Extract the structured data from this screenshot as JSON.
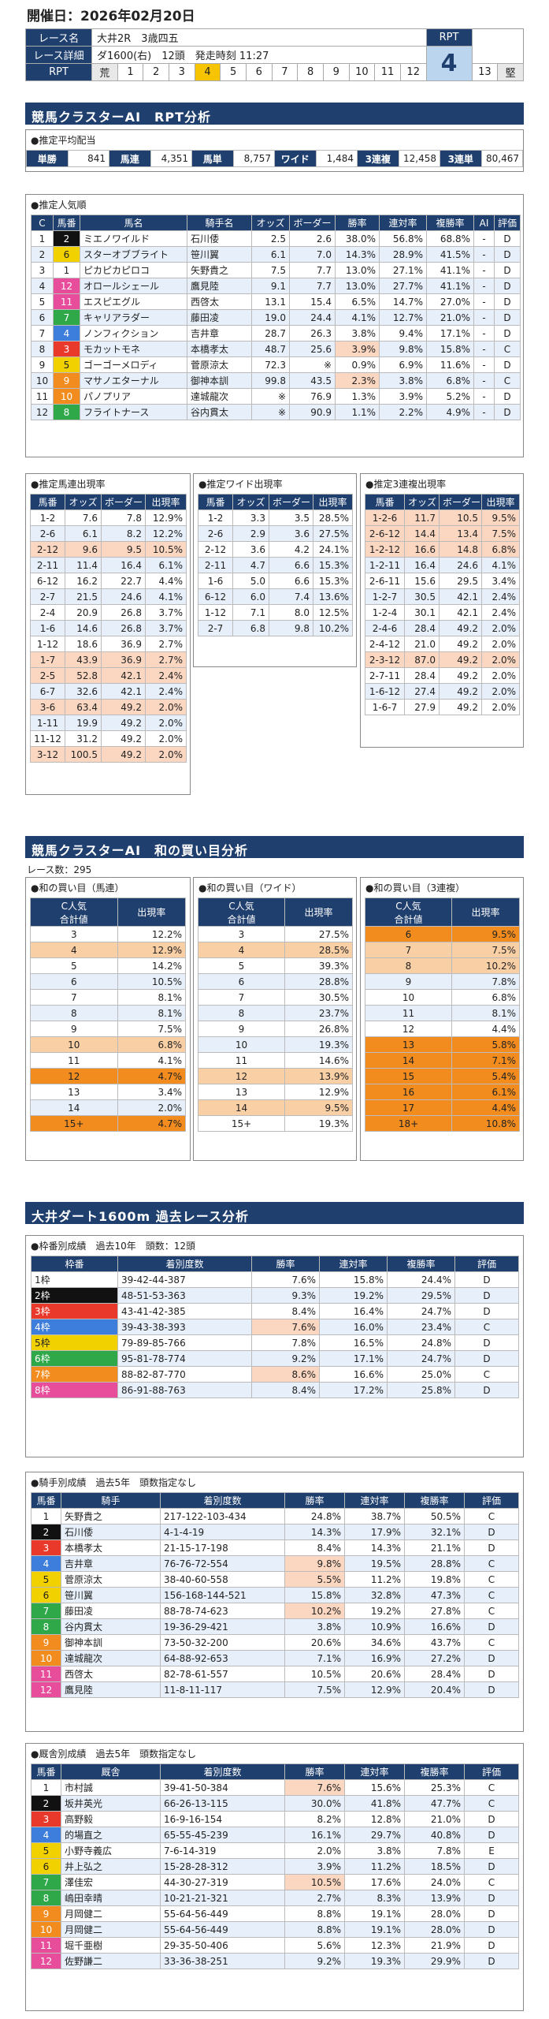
{
  "date": "開催日：2026年02月20日",
  "race": {
    "name_label": "レース名",
    "name": "大井2R　3歳四五",
    "detail_label": "レース詳細",
    "detail": "ダ1600(右)　12頭　発走時刻 11:27",
    "rpt_label": "RPT",
    "rpt_scale_start": "荒",
    "rpt_scale_end": "堅",
    "rpt_scale": [
      "1",
      "2",
      "3",
      "4",
      "5",
      "6",
      "7",
      "8",
      "9",
      "10",
      "11",
      "12",
      "13"
    ],
    "rpt_selected": "4",
    "rpt_value": "4"
  },
  "sec1": "競馬クラスターAI　RPT分析",
  "pay": {
    "title": "●推定平均配当",
    "items": [
      [
        "単勝",
        "841"
      ],
      [
        "馬連",
        "4,351"
      ],
      [
        "馬単",
        "8,757"
      ],
      [
        "ワイド",
        "1,484"
      ],
      [
        "3連複",
        "12,458"
      ],
      [
        "3連単",
        "80,467"
      ]
    ]
  },
  "pop": {
    "title": "●推定人気順",
    "headers": [
      "C",
      "馬番",
      "馬名",
      "騎手名",
      "オッズ",
      "ボーダー",
      "勝率",
      "連対率",
      "複勝率",
      "AI",
      "評価"
    ],
    "rows": [
      [
        "1",
        "2",
        "ミエノワイルド",
        "石川倭",
        "2.5",
        "2.6",
        "38.0%",
        "56.8%",
        "68.8%",
        "-",
        "D"
      ],
      [
        "2",
        "6",
        "スターオブブライト",
        "笹川翼",
        "6.1",
        "7.0",
        "14.3%",
        "28.9%",
        "41.5%",
        "-",
        "D"
      ],
      [
        "3",
        "1",
        "ピカピカピロコ",
        "矢野貴之",
        "7.5",
        "7.7",
        "13.0%",
        "27.1%",
        "41.1%",
        "-",
        "D"
      ],
      [
        "4",
        "12",
        "オロールシェール",
        "鷹見陸",
        "9.1",
        "7.7",
        "13.0%",
        "27.7%",
        "41.1%",
        "-",
        "D"
      ],
      [
        "5",
        "11",
        "エスピエグル",
        "西啓太",
        "13.1",
        "15.4",
        "6.5%",
        "14.7%",
        "27.0%",
        "-",
        "D"
      ],
      [
        "6",
        "7",
        "キャリアラダー",
        "藤田凌",
        "19.0",
        "24.4",
        "4.1%",
        "12.7%",
        "21.0%",
        "-",
        "D"
      ],
      [
        "7",
        "4",
        "ノンフィクション",
        "吉井章",
        "28.7",
        "26.3",
        "3.8%",
        "9.4%",
        "17.1%",
        "-",
        "D"
      ],
      [
        "8",
        "3",
        "モカットモネ",
        "本橋孝太",
        "48.7",
        "25.6",
        "3.9%",
        "9.8%",
        "15.8%",
        "-",
        "C"
      ],
      [
        "9",
        "5",
        "ゴーゴーメロディ",
        "菅原涼太",
        "72.3",
        "※",
        "0.9%",
        "6.9%",
        "11.6%",
        "-",
        "D"
      ],
      [
        "10",
        "9",
        "マサノエターナル",
        "御神本訓",
        "99.8",
        "43.5",
        "2.3%",
        "3.8%",
        "6.8%",
        "-",
        "C"
      ],
      [
        "11",
        "10",
        "パノプリア",
        "達城龍次",
        "※",
        "76.9",
        "1.3%",
        "3.9%",
        "5.2%",
        "-",
        "D"
      ],
      [
        "12",
        "8",
        "フライトナース",
        "谷内貫太",
        "※",
        "90.9",
        "1.1%",
        "2.2%",
        "4.9%",
        "-",
        "D"
      ]
    ]
  },
  "umaren": {
    "title": "●推定馬連出現率",
    "headers": [
      "馬番",
      "オッズ",
      "ボーダー",
      "出現率"
    ],
    "rows": [
      [
        "1-2",
        "7.6",
        "7.8",
        "12.9%"
      ],
      [
        "2-6",
        "6.1",
        "8.2",
        "12.2%"
      ],
      [
        "2-12",
        "9.6",
        "9.5",
        "10.5%"
      ],
      [
        "2-11",
        "11.4",
        "16.4",
        "6.1%"
      ],
      [
        "6-12",
        "16.2",
        "22.7",
        "4.4%"
      ],
      [
        "2-7",
        "21.5",
        "24.6",
        "4.1%"
      ],
      [
        "2-4",
        "20.9",
        "26.8",
        "3.7%"
      ],
      [
        "1-6",
        "14.6",
        "26.8",
        "3.7%"
      ],
      [
        "1-12",
        "18.6",
        "36.9",
        "2.7%"
      ],
      [
        "1-7",
        "43.9",
        "36.9",
        "2.7%"
      ],
      [
        "2-5",
        "52.8",
        "42.1",
        "2.4%"
      ],
      [
        "6-7",
        "32.6",
        "42.1",
        "2.4%"
      ],
      [
        "3-6",
        "63.4",
        "49.2",
        "2.0%"
      ],
      [
        "1-11",
        "19.9",
        "49.2",
        "2.0%"
      ],
      [
        "11-12",
        "31.2",
        "49.2",
        "2.0%"
      ],
      [
        "3-12",
        "100.5",
        "49.2",
        "2.0%"
      ]
    ]
  },
  "wide": {
    "title": "●推定ワイド出現率",
    "headers": [
      "馬番",
      "オッズ",
      "ボーダー",
      "出現率"
    ],
    "rows": [
      [
        "1-2",
        "3.3",
        "3.5",
        "28.5%"
      ],
      [
        "2-6",
        "2.9",
        "3.6",
        "27.5%"
      ],
      [
        "2-12",
        "3.6",
        "4.2",
        "24.1%"
      ],
      [
        "2-11",
        "4.7",
        "6.6",
        "15.3%"
      ],
      [
        "1-6",
        "5.0",
        "6.6",
        "15.3%"
      ],
      [
        "6-12",
        "6.0",
        "7.4",
        "13.6%"
      ],
      [
        "1-12",
        "7.1",
        "8.0",
        "12.5%"
      ],
      [
        "2-7",
        "6.8",
        "9.8",
        "10.2%"
      ]
    ]
  },
  "sanren": {
    "title": "●推定3連複出現率",
    "headers": [
      "馬番",
      "オッズ",
      "ボーダー",
      "出現率"
    ],
    "rows": [
      [
        "1-2-6",
        "11.7",
        "10.5",
        "9.5%"
      ],
      [
        "2-6-12",
        "14.4",
        "13.4",
        "7.5%"
      ],
      [
        "1-2-12",
        "16.6",
        "14.8",
        "6.8%"
      ],
      [
        "1-2-11",
        "16.4",
        "24.6",
        "4.1%"
      ],
      [
        "2-6-11",
        "15.6",
        "29.5",
        "3.4%"
      ],
      [
        "1-2-7",
        "30.5",
        "42.1",
        "2.4%"
      ],
      [
        "1-2-4",
        "30.1",
        "42.1",
        "2.4%"
      ],
      [
        "2-4-6",
        "28.4",
        "49.2",
        "2.0%"
      ],
      [
        "2-4-12",
        "21.0",
        "49.2",
        "2.0%"
      ],
      [
        "2-3-12",
        "87.0",
        "49.2",
        "2.0%"
      ],
      [
        "2-7-11",
        "28.4",
        "49.2",
        "2.0%"
      ],
      [
        "1-6-12",
        "27.4",
        "49.2",
        "2.0%"
      ],
      [
        "1-6-7",
        "27.9",
        "49.2",
        "2.0%"
      ]
    ]
  },
  "sec2": "競馬クラスターAI　和の買い目分析",
  "race_count": "レース数：295",
  "wa_umaren": {
    "title": "●和の買い目（馬連）",
    "headers": [
      "C人気\n合計値",
      "出現率"
    ],
    "rows": [
      [
        "3",
        "12.2%"
      ],
      [
        "4",
        "12.9%"
      ],
      [
        "5",
        "14.2%"
      ],
      [
        "6",
        "10.5%"
      ],
      [
        "7",
        "8.1%"
      ],
      [
        "8",
        "8.1%"
      ],
      [
        "9",
        "7.5%"
      ],
      [
        "10",
        "6.8%"
      ],
      [
        "11",
        "4.1%"
      ],
      [
        "12",
        "4.7%"
      ],
      [
        "13",
        "3.4%"
      ],
      [
        "14",
        "2.0%"
      ],
      [
        "15+",
        "4.7%"
      ]
    ]
  },
  "wa_wide": {
    "title": "●和の買い目（ワイド）",
    "headers": [
      "C人気\n合計値",
      "出現率"
    ],
    "rows": [
      [
        "3",
        "27.5%"
      ],
      [
        "4",
        "28.5%"
      ],
      [
        "5",
        "39.3%"
      ],
      [
        "6",
        "28.8%"
      ],
      [
        "7",
        "30.5%"
      ],
      [
        "8",
        "23.7%"
      ],
      [
        "9",
        "26.8%"
      ],
      [
        "10",
        "19.3%"
      ],
      [
        "11",
        "14.6%"
      ],
      [
        "12",
        "13.9%"
      ],
      [
        "13",
        "12.9%"
      ],
      [
        "14",
        "9.5%"
      ],
      [
        "15+",
        "19.3%"
      ]
    ]
  },
  "wa_san": {
    "title": "●和の買い目（3連複）",
    "headers": [
      "C人気\n合計値",
      "出現率"
    ],
    "rows": [
      [
        "6",
        "9.5%"
      ],
      [
        "7",
        "7.5%"
      ],
      [
        "8",
        "10.2%"
      ],
      [
        "9",
        "7.8%"
      ],
      [
        "10",
        "6.8%"
      ],
      [
        "11",
        "8.1%"
      ],
      [
        "12",
        "4.4%"
      ],
      [
        "13",
        "5.8%"
      ],
      [
        "14",
        "7.1%"
      ],
      [
        "15",
        "5.4%"
      ],
      [
        "16",
        "6.1%"
      ],
      [
        "17",
        "4.4%"
      ],
      [
        "18+",
        "10.8%"
      ]
    ]
  },
  "sec3": "大井ダート1600m 過去レース分析",
  "waku": {
    "title": "●枠番別成績　過去10年　頭数：12頭",
    "headers": [
      "枠番",
      "着別度数",
      "勝率",
      "連対率",
      "複勝率",
      "評価"
    ],
    "rows": [
      [
        "1枠",
        "39-42-44-387",
        "7.6%",
        "15.8%",
        "24.4%",
        "D"
      ],
      [
        "2枠",
        "48-51-53-363",
        "9.3%",
        "19.2%",
        "29.5%",
        "D"
      ],
      [
        "3枠",
        "43-41-42-385",
        "8.4%",
        "16.4%",
        "24.7%",
        "D"
      ],
      [
        "4枠",
        "39-43-38-393",
        "7.6%",
        "16.0%",
        "23.4%",
        "C"
      ],
      [
        "5枠",
        "79-89-85-766",
        "7.8%",
        "16.5%",
        "24.8%",
        "D"
      ],
      [
        "6枠",
        "95-81-78-774",
        "9.2%",
        "17.1%",
        "24.7%",
        "D"
      ],
      [
        "7枠",
        "88-82-87-770",
        "8.6%",
        "16.6%",
        "25.0%",
        "C"
      ],
      [
        "8枠",
        "86-91-88-763",
        "8.4%",
        "17.2%",
        "25.8%",
        "D"
      ]
    ]
  },
  "jockey": {
    "title": "●騎手別成績　過去5年　頭数指定なし",
    "headers": [
      "馬番",
      "騎手",
      "着別度数",
      "勝率",
      "連対率",
      "複勝率",
      "評価"
    ],
    "rows": [
      [
        "1",
        "矢野貴之",
        "217-122-103-434",
        "24.8%",
        "38.7%",
        "50.5%",
        "C"
      ],
      [
        "2",
        "石川倭",
        "4-1-4-19",
        "14.3%",
        "17.9%",
        "32.1%",
        "D"
      ],
      [
        "3",
        "本橋孝太",
        "21-15-17-198",
        "8.4%",
        "14.3%",
        "21.1%",
        "D"
      ],
      [
        "4",
        "吉井章",
        "76-76-72-554",
        "9.8%",
        "19.5%",
        "28.8%",
        "C"
      ],
      [
        "5",
        "菅原涼太",
        "38-40-60-558",
        "5.5%",
        "11.2%",
        "19.8%",
        "C"
      ],
      [
        "6",
        "笹川翼",
        "156-168-144-521",
        "15.8%",
        "32.8%",
        "47.3%",
        "C"
      ],
      [
        "7",
        "藤田凌",
        "88-78-74-623",
        "10.2%",
        "19.2%",
        "27.8%",
        "C"
      ],
      [
        "8",
        "谷内貫太",
        "19-36-29-421",
        "3.8%",
        "10.9%",
        "16.6%",
        "D"
      ],
      [
        "9",
        "御神本訓",
        "73-50-32-200",
        "20.6%",
        "34.6%",
        "43.7%",
        "C"
      ],
      [
        "10",
        "達城龍次",
        "64-88-92-653",
        "7.1%",
        "16.9%",
        "27.2%",
        "D"
      ],
      [
        "11",
        "西啓太",
        "82-78-61-557",
        "10.5%",
        "20.6%",
        "28.4%",
        "D"
      ],
      [
        "12",
        "鷹見陸",
        "11-8-11-117",
        "7.5%",
        "12.9%",
        "20.4%",
        "D"
      ]
    ]
  },
  "trainer": {
    "title": "●厩舎別成績　過去5年　頭数指定なし",
    "headers": [
      "馬番",
      "厩舎",
      "着別度数",
      "勝率",
      "連対率",
      "複勝率",
      "評価"
    ],
    "rows": [
      [
        "1",
        "市村誠",
        "39-41-50-384",
        "7.6%",
        "15.6%",
        "25.3%",
        "C"
      ],
      [
        "2",
        "坂井英光",
        "66-26-13-115",
        "30.0%",
        "41.8%",
        "47.7%",
        "C"
      ],
      [
        "3",
        "高野毅",
        "16-9-16-154",
        "8.2%",
        "12.8%",
        "21.0%",
        "D"
      ],
      [
        "4",
        "的場直之",
        "65-55-45-239",
        "16.1%",
        "29.7%",
        "40.8%",
        "D"
      ],
      [
        "5",
        "小野寺義広",
        "7-6-14-319",
        "2.0%",
        "3.8%",
        "7.8%",
        "E"
      ],
      [
        "6",
        "井上弘之",
        "15-28-28-312",
        "3.9%",
        "11.2%",
        "18.5%",
        "D"
      ],
      [
        "7",
        "澤佳宏",
        "44-30-27-319",
        "10.5%",
        "17.6%",
        "24.0%",
        "C"
      ],
      [
        "8",
        "嶋田幸晴",
        "10-21-21-321",
        "2.7%",
        "8.3%",
        "13.9%",
        "D"
      ],
      [
        "9",
        "月岡健二",
        "55-64-56-449",
        "8.8%",
        "19.1%",
        "28.0%",
        "D"
      ],
      [
        "10",
        "月岡健二",
        "55-64-56-449",
        "8.8%",
        "19.1%",
        "28.0%",
        "D"
      ],
      [
        "11",
        "堀千亜樹",
        "29-35-50-406",
        "5.6%",
        "12.3%",
        "21.9%",
        "D"
      ],
      [
        "12",
        "佐野謙二",
        "33-36-38-251",
        "9.2%",
        "19.3%",
        "29.9%",
        "D"
      ]
    ]
  },
  "colors": {
    "navy": "#1f3f6e",
    "waku": [
      "#ffffff",
      "#111111",
      "#e8392b",
      "#3d7ddb",
      "#f2d100",
      "#2fa84a",
      "#f28c1e",
      "#e74d9b"
    ]
  }
}
